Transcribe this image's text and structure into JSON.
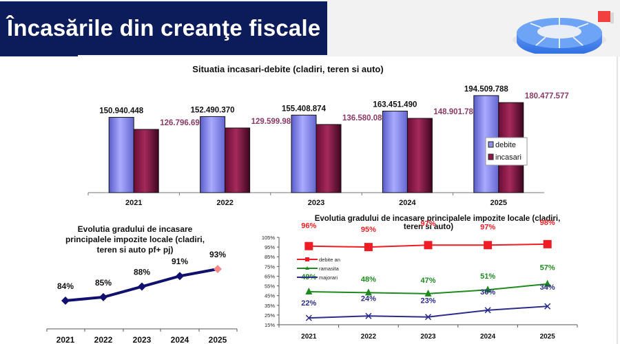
{
  "header": {
    "title": "Încasările din creanţe fiscale",
    "logo_icon": "segmented-ring-logo-icon"
  },
  "colors": {
    "title_bg": "#0c1b5a",
    "debite": "#8d8fe8",
    "incasari": "#8c1a4a",
    "incasari_label": "#8c3a68",
    "debite_an": "#ee1c24",
    "ramasita": "#1e8a1e",
    "majorari": "#2b2b8c",
    "grad_line": "#10106e",
    "grad_last": "#f08a8a"
  },
  "chart_data": [
    {
      "id": "bar",
      "type": "bar",
      "title": "Situatia incasari-debite (cladiri, teren si auto)",
      "categories": [
        "2021",
        "2022",
        "2023",
        "2024",
        "2025"
      ],
      "series": [
        {
          "name": "debite",
          "values": [
            150940448,
            152490370,
            155408874,
            163451490,
            194509788
          ],
          "labels": [
            "150.940.448",
            "152.490.370",
            "155.408.874",
            "163.451.490",
            "194.509.788"
          ]
        },
        {
          "name": "incasari",
          "values": [
            126796696,
            129599980,
            136580087,
            148901780,
            180477577
          ],
          "labels": [
            "126.796.696",
            "129.599.980",
            "136.580.087",
            "148.901.780",
            "180.477.577"
          ]
        }
      ],
      "ylim": [
        0,
        200000000
      ],
      "legend": "right",
      "grid": false
    },
    {
      "id": "grad",
      "type": "line",
      "title_lines": [
        "Evolutia  gradului de incasare",
        "principalele  impozite locale (cladiri,",
        "teren si auto pf+ pj)"
      ],
      "categories": [
        "2021",
        "2022",
        "2023",
        "2024",
        "2025"
      ],
      "values": [
        84,
        85,
        88,
        91,
        93
      ],
      "labels": [
        "84%",
        "85%",
        "88%",
        "91%",
        "93%"
      ],
      "ylim": [
        70,
        100
      ],
      "grid": false
    },
    {
      "id": "impozite",
      "type": "line",
      "title_lines": [
        "Evolutia gradului de incasare principalele impozite locale    (cladiri,",
        "teren si auto)"
      ],
      "categories": [
        "2021",
        "2022",
        "2023",
        "2024",
        "2025"
      ],
      "series": [
        {
          "name": "debite an",
          "marker": "square",
          "values": [
            96,
            95,
            97,
            97,
            98
          ],
          "labels": [
            "96%",
            "95%",
            "97%",
            "97%",
            "98%"
          ]
        },
        {
          "name": "ramasita",
          "marker": "triangle",
          "values": [
            49,
            48,
            47,
            51,
            57
          ],
          "labels": [
            "49%",
            "48%",
            "47%",
            "51%",
            "57%"
          ]
        },
        {
          "name": "majorari",
          "marker": "x",
          "values": [
            22,
            24,
            23,
            30,
            34
          ],
          "labels": [
            "22%",
            "24%",
            "23%",
            "30%",
            "34%"
          ]
        }
      ],
      "yticks": [
        "105%",
        "95%",
        "85%",
        "75%",
        "65%",
        "55%",
        "45%",
        "35%",
        "25%",
        "15%"
      ],
      "ylim": [
        15,
        105
      ],
      "legend": "top-left",
      "grid": false
    }
  ]
}
